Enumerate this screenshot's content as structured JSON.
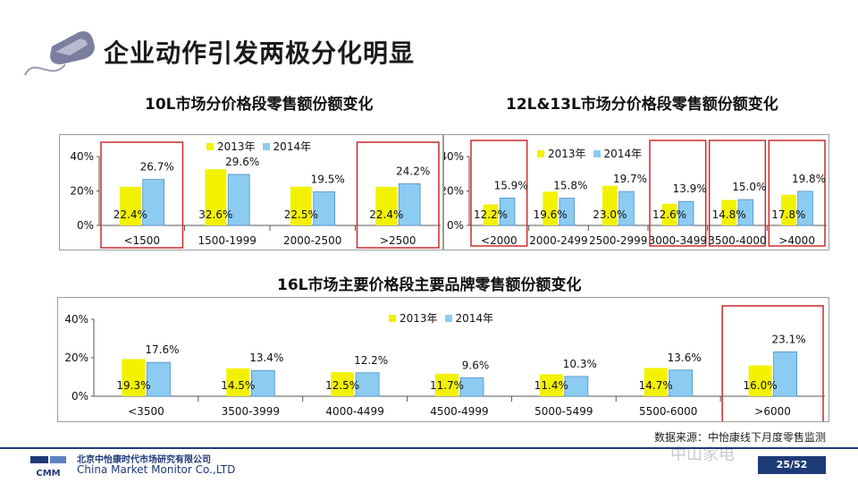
{
  "page": {
    "title": "企业动作引发两极分化明显",
    "source_text": "数据来源：中怡康线下月度零售监测",
    "company_cn": "北京中怡康时代市场研究有限公司",
    "company_en": "China Market Monitor Co.,LTD",
    "logo_text": "CMM",
    "page_number": "25/52",
    "watermark": "中山家电"
  },
  "colors": {
    "y2013": "#f2f200",
    "y2014": "#8ccbf2",
    "highlight": "#cc2a2a",
    "brand": "#1f3a78"
  },
  "chart_data": [
    {
      "id": "c10",
      "type": "bar",
      "title": "10L市场分价格段零售额份额变化",
      "categories": [
        "<1500",
        "1500-1999",
        "2000-2500",
        ">2500"
      ],
      "series": [
        {
          "name": "2013年",
          "values": [
            22.4,
            32.6,
            22.5,
            22.4
          ],
          "labels": [
            "22.4%",
            "32.6%",
            "22.5%",
            "22.4%"
          ]
        },
        {
          "name": "2014年",
          "values": [
            26.7,
            29.6,
            19.5,
            24.2
          ],
          "labels": [
            "26.7%",
            "29.6%",
            "19.5%",
            "24.2%"
          ]
        }
      ],
      "yticks": [
        "40%",
        "20%",
        "0%"
      ],
      "ylim": [
        0,
        40
      ],
      "highlighted_categories": [
        0,
        3
      ]
    },
    {
      "id": "c12",
      "type": "bar",
      "title": "12L&13L市场分价格段零售额份额变化",
      "categories": [
        "<2000",
        "2000-2499",
        "2500-2999",
        "3000-3499",
        "3500-4000",
        ">4000"
      ],
      "series": [
        {
          "name": "2013年",
          "values": [
            12.2,
            19.6,
            23.0,
            12.6,
            14.8,
            17.8
          ],
          "labels": [
            "12.2%",
            "19.6%",
            "23.0%",
            "12.6%",
            "14.8%",
            "17.8%"
          ]
        },
        {
          "name": "2014年",
          "values": [
            15.9,
            15.8,
            19.7,
            13.9,
            15.0,
            19.8
          ],
          "labels": [
            "15.9%",
            "15.8%",
            "19.7%",
            "13.9%",
            "15.0%",
            "19.8%"
          ]
        }
      ],
      "yticks": [
        "40%",
        "20%",
        "0%"
      ],
      "ylim": [
        0,
        40
      ],
      "highlighted_categories": [
        0,
        3,
        4,
        5
      ]
    },
    {
      "id": "c16",
      "type": "bar",
      "title": "16L市场主要价格段主要品牌零售额份额变化",
      "categories": [
        "<3500",
        "3500-3999",
        "4000-4499",
        "4500-4999",
        "5000-5499",
        "5500-6000",
        ">6000"
      ],
      "series": [
        {
          "name": "2013年",
          "values": [
            19.3,
            14.5,
            12.5,
            11.7,
            11.4,
            14.7,
            16.0
          ],
          "labels": [
            "19.3%",
            "14.5%",
            "12.5%",
            "11.7%",
            "11.4%",
            "14.7%",
            "16.0%"
          ]
        },
        {
          "name": "2014年",
          "values": [
            17.6,
            13.4,
            12.2,
            9.6,
            10.3,
            13.6,
            23.1
          ],
          "labels": [
            "17.6%",
            "13.4%",
            "12.2%",
            "9.6%",
            "10.3%",
            "13.6%",
            "23.1%"
          ]
        }
      ],
      "yticks": [
        "40%",
        "20%",
        "0%"
      ],
      "ylim": [
        0,
        40
      ],
      "highlighted_categories": [
        6
      ]
    }
  ]
}
